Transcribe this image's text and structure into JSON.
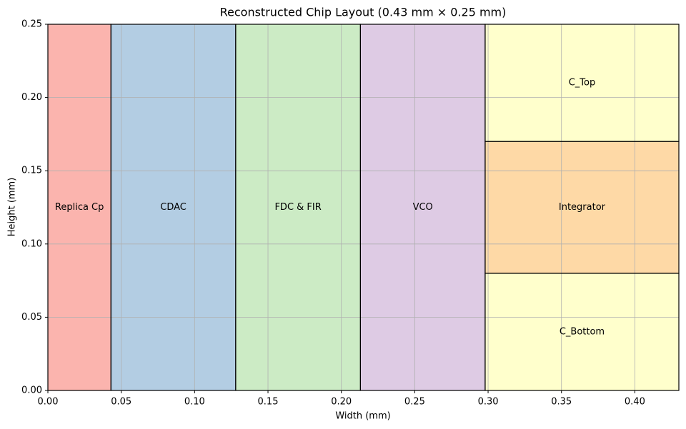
{
  "chart_data": {
    "type": "blocks",
    "title": "Reconstructed Chip Layout (0.43 mm × 0.25 mm)",
    "x_label": "Width (mm)",
    "y_label": "Height (mm)",
    "xlim": [
      0,
      0.43
    ],
    "ylim": [
      0,
      0.25
    ],
    "xticks": [
      {
        "value": 0,
        "label": "0.00"
      },
      {
        "value": 0.05,
        "label": "0.05"
      },
      {
        "value": 0.1,
        "label": "0.10"
      },
      {
        "value": 0.15,
        "label": "0.15"
      },
      {
        "value": 0.2,
        "label": "0.20"
      },
      {
        "value": 0.25,
        "label": "0.25"
      },
      {
        "value": 0.3,
        "label": "0.30"
      },
      {
        "value": 0.35,
        "label": "0.35"
      },
      {
        "value": 0.4,
        "label": "0.40"
      }
    ],
    "yticks": [
      {
        "value": 0,
        "label": "0.00"
      },
      {
        "value": 0.05,
        "label": "0.05"
      },
      {
        "value": 0.1,
        "label": "0.10"
      },
      {
        "value": 0.15,
        "label": "0.15"
      },
      {
        "value": 0.2,
        "label": "0.20"
      },
      {
        "value": 0.25,
        "label": "0.25"
      }
    ],
    "grid": true,
    "blocks": [
      {
        "label": "Replica Cp",
        "x": 0,
        "y": 0,
        "width": 0.043,
        "height": 0.25,
        "color": "#fbb4ae"
      },
      {
        "label": "CDAC",
        "x": 0.043,
        "y": 0,
        "width": 0.085,
        "height": 0.25,
        "color": "#b3cde3"
      },
      {
        "label": "FDC & FIR",
        "x": 0.128,
        "y": 0,
        "width": 0.085,
        "height": 0.25,
        "color": "#ccebc5"
      },
      {
        "label": "VCO",
        "x": 0.213,
        "y": 0,
        "width": 0.085,
        "height": 0.25,
        "color": "#decbe4"
      },
      {
        "label": "C_Bottom",
        "x": 0.298,
        "y": 0,
        "width": 0.132,
        "height": 0.08,
        "color": "#ffffcc"
      },
      {
        "label": "Integrator",
        "x": 0.298,
        "y": 0.08,
        "width": 0.132,
        "height": 0.09,
        "color": "#fed9a6"
      },
      {
        "label": "C_Top",
        "x": 0.298,
        "y": 0.17,
        "width": 0.132,
        "height": 0.08,
        "color": "#ffffcc"
      }
    ]
  }
}
